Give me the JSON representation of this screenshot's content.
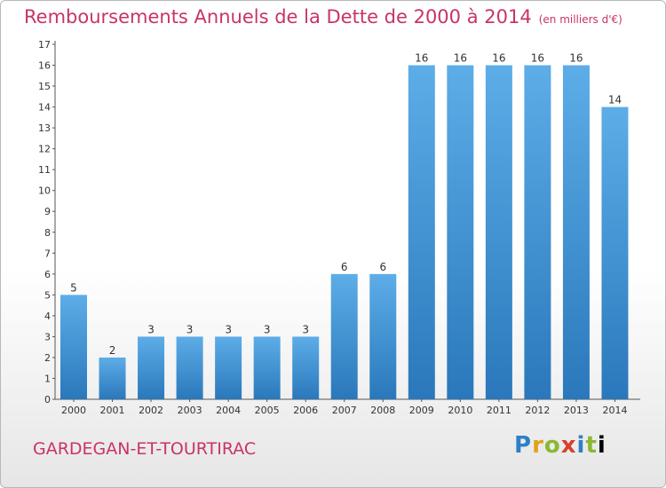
{
  "header": {
    "title": "Remboursements Annuels de la Dette de 2000 à 2014",
    "unit": "(en milliers d'€)"
  },
  "footer": {
    "commune": "GARDEGAN-ET-TOURTIRAC",
    "logo": [
      "P",
      "r",
      "o",
      "x",
      "i",
      "t",
      "i"
    ]
  },
  "chart_data": {
    "type": "bar",
    "title": "Remboursements Annuels de la Dette de 2000 à 2014",
    "xlabel": "",
    "ylabel": "",
    "categories": [
      "2000",
      "2001",
      "2002",
      "2003",
      "2004",
      "2005",
      "2006",
      "2007",
      "2008",
      "2009",
      "2010",
      "2011",
      "2012",
      "2013",
      "2014"
    ],
    "values": [
      5,
      2,
      3,
      3,
      3,
      3,
      3,
      6,
      6,
      16,
      16,
      16,
      16,
      16,
      14
    ],
    "ylim": [
      0,
      17
    ],
    "yticks": [
      0,
      1,
      2,
      3,
      4,
      5,
      6,
      7,
      8,
      9,
      10,
      11,
      12,
      13,
      14,
      15,
      16,
      17
    ],
    "grid": false,
    "legend": "none",
    "colors": {
      "bar_light": "#5dade8",
      "bar_dark": "#2f7fc0",
      "title": "#c8336b"
    }
  }
}
